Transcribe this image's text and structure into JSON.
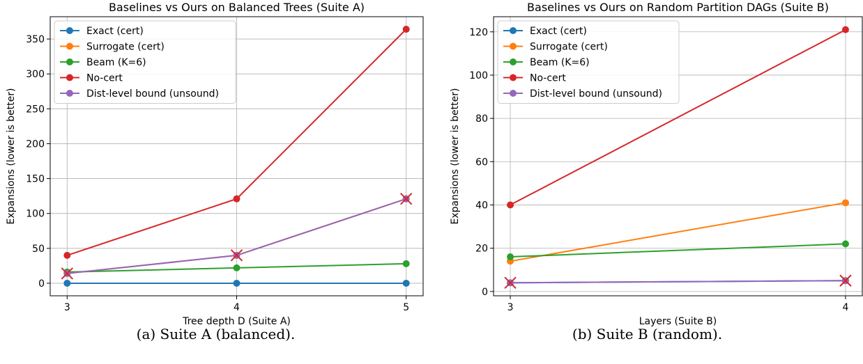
{
  "captions": [
    "(a) Suite A (balanced).",
    "(b) Suite B (random)."
  ],
  "chart_data": [
    {
      "type": "line",
      "title": "Baselines vs Ours on Balanced Trees (Suite A)",
      "xlabel": "Tree depth D (Suite A)",
      "ylabel": "Expansions (lower is better)",
      "x": [
        3,
        4,
        5
      ],
      "xlim": [
        2.9,
        5.1
      ],
      "ylim": [
        -18,
        382
      ],
      "xticks": [
        3,
        4,
        5
      ],
      "yticks": [
        0,
        50,
        100,
        150,
        200,
        250,
        300,
        350
      ],
      "grid": true,
      "legend_position": "top-left",
      "series": [
        {
          "name": "Exact (cert)",
          "color": "#1f77b4",
          "values": [
            0,
            0,
            0
          ]
        },
        {
          "name": "Surrogate (cert)",
          "color": "#ff7f0e",
          "values": [
            14,
            40,
            121
          ]
        },
        {
          "name": "Beam (K=6)",
          "color": "#2ca02c",
          "values": [
            16,
            22,
            28
          ]
        },
        {
          "name": "No-cert",
          "color": "#d62728",
          "values": [
            40,
            121,
            364
          ]
        },
        {
          "name": "Dist-level bound (unsound)",
          "color": "#9467bd",
          "values": [
            14,
            40,
            121
          ]
        }
      ],
      "unsound_markers": {
        "color": "#d62728",
        "series_index": 4
      }
    },
    {
      "type": "line",
      "title": "Baselines vs Ours on Random Partition DAGs (Suite B)",
      "xlabel": "Layers (Suite B)",
      "ylabel": "Expansions (lower is better)",
      "x": [
        3,
        4
      ],
      "xlim": [
        2.95,
        4.05
      ],
      "ylim": [
        -2,
        127
      ],
      "xticks": [
        3,
        4
      ],
      "yticks": [
        0,
        20,
        40,
        60,
        80,
        100,
        120
      ],
      "grid": true,
      "legend_position": "top-left",
      "series": [
        {
          "name": "Exact (cert)",
          "color": "#1f77b4",
          "values": [
            4,
            5
          ]
        },
        {
          "name": "Surrogate (cert)",
          "color": "#ff7f0e",
          "values": [
            14,
            41
          ]
        },
        {
          "name": "Beam (K=6)",
          "color": "#2ca02c",
          "values": [
            16,
            22
          ]
        },
        {
          "name": "No-cert",
          "color": "#d62728",
          "values": [
            40,
            121
          ]
        },
        {
          "name": "Dist-level bound (unsound)",
          "color": "#9467bd",
          "values": [
            4,
            5
          ]
        }
      ],
      "unsound_markers": {
        "color": "#d62728",
        "series_index": 4
      }
    }
  ]
}
